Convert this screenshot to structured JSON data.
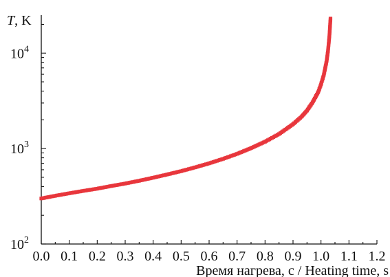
{
  "chart_data": {
    "type": "scatter",
    "title": "",
    "xlabel": "Время нагрева, с / Heating time, s",
    "ylabel_italic": "T",
    "ylabel_unit": ", K",
    "x_ticks": [
      "0.0",
      "0.1",
      "0.2",
      "0.3",
      "0.4",
      "0.5",
      "0.6",
      "0.7",
      "0.8",
      "0.9",
      "1.0",
      "1.1",
      "1.2"
    ],
    "y_ticks": [
      {
        "base": "10",
        "exp": "2",
        "value": 100
      },
      {
        "base": "10",
        "exp": "3",
        "value": 1000
      },
      {
        "base": "10",
        "exp": "4",
        "value": 10000
      }
    ],
    "xlim": [
      0.0,
      1.2
    ],
    "ylim": [
      100,
      25000
    ],
    "y_scale": "log",
    "grid": false,
    "marker_color": "#e8363c",
    "series": [
      {
        "x": [
          0.0,
          0.05,
          0.1,
          0.15,
          0.2,
          0.25,
          0.3,
          0.35,
          0.4,
          0.45,
          0.5,
          0.55,
          0.6,
          0.65,
          0.7,
          0.75,
          0.8,
          0.85,
          0.9,
          0.93,
          0.95,
          0.97,
          0.99,
          1.0,
          1.01,
          1.02,
          1.025,
          1.03,
          1.034
        ],
        "y": [
          300,
          320,
          340,
          360,
          380,
          405,
          430,
          460,
          495,
          535,
          580,
          635,
          700,
          780,
          880,
          1010,
          1180,
          1420,
          1800,
          2150,
          2500,
          3050,
          3900,
          4700,
          5900,
          8200,
          10500,
          15000,
          23000
        ]
      }
    ]
  }
}
